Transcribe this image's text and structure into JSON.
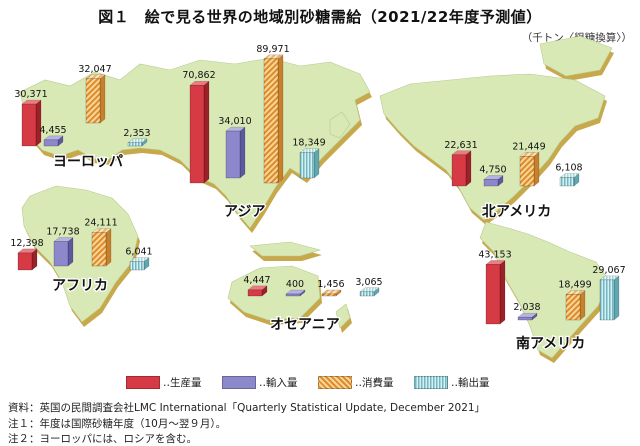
{
  "title": "図１　絵で見る世界の地域別砂糖需給（2021/22年度予測値）",
  "unit": "（千トン〈粗糖換算〉）",
  "colors": {
    "production": "#d63a44",
    "import": "#8c88cc",
    "consumption": "#e8a84c",
    "export": "#8fcfd6",
    "land": "#d8e9b6",
    "land_side": "#c7a84a"
  },
  "chart_data": {
    "type": "bar",
    "series": [
      {
        "name": "生産量",
        "key": "production"
      },
      {
        "name": "輸入量",
        "key": "import"
      },
      {
        "name": "消費量",
        "key": "consumption"
      },
      {
        "name": "輸出量",
        "key": "export"
      }
    ],
    "regions": [
      {
        "name": "ヨーロッパ",
        "values": [
          30371,
          4455,
          32047,
          2353
        ],
        "labels": [
          "30,371",
          "4,455",
          "32,047",
          "2,353"
        ]
      },
      {
        "name": "アジア",
        "values": [
          70862,
          34010,
          89971,
          18349
        ],
        "labels": [
          "70,862",
          "34,010",
          "89,971",
          "18,349"
        ]
      },
      {
        "name": "アフリカ",
        "values": [
          12398,
          17738,
          24111,
          6041
        ],
        "labels": [
          "12,398",
          "17,738",
          "24,111",
          "6,041"
        ]
      },
      {
        "name": "オセアニア",
        "values": [
          4447,
          400,
          1456,
          3065
        ],
        "labels": [
          "4,447",
          "400",
          "1,456",
          "3,065"
        ]
      },
      {
        "name": "北アメリカ",
        "values": [
          22631,
          4750,
          21449,
          6108
        ],
        "labels": [
          "22,631",
          "4,750",
          "21,449",
          "6,108"
        ]
      },
      {
        "name": "南アメリカ",
        "values": [
          43153,
          2038,
          18499,
          29067
        ],
        "labels": [
          "43,153",
          "2,038",
          "18,499",
          "29,067"
        ]
      }
    ]
  },
  "legend": [
    {
      "label": "‥生産量",
      "key": "production"
    },
    {
      "label": "‥輸入量",
      "key": "import"
    },
    {
      "label": "‥消費量",
      "key": "consumption"
    },
    {
      "label": "‥輸出量",
      "key": "export"
    }
  ],
  "notes": {
    "source": "資料：英国の民間調査会社LMC International「Quarterly Statistical Update, December 2021」",
    "note1": "注１：年度は国際砂糖年度（10月～翌９月）。",
    "note2": "注２：ヨーロッパには、ロシアを含む。"
  }
}
